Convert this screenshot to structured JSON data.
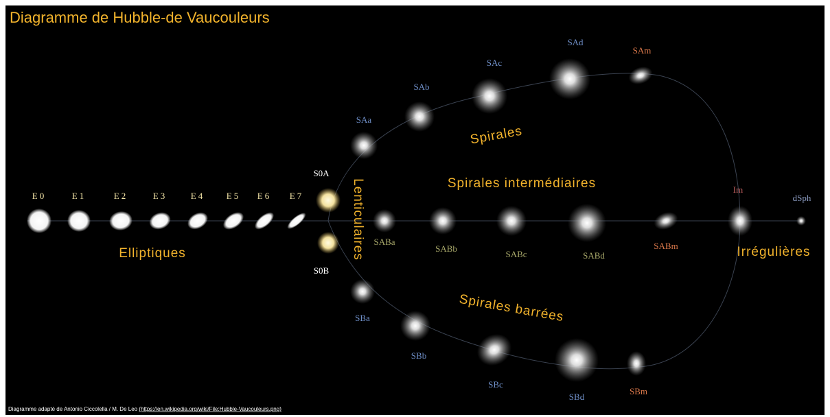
{
  "title": "Diagramme de Hubble-de Vaucouleurs",
  "groups": {
    "elliptical": "Elliptiques",
    "lenticular": "Lenticulaires",
    "spiral": "Spirales",
    "intermediate": "Spirales intermédiaires",
    "barred": "Spirales barrées",
    "irregular": "Irrégulières"
  },
  "galaxies": [
    {
      "label": "E0"
    },
    {
      "label": "E1"
    },
    {
      "label": "E2"
    },
    {
      "label": "E3"
    },
    {
      "label": "E4"
    },
    {
      "label": "E5"
    },
    {
      "label": "E6"
    },
    {
      "label": "E7"
    },
    {
      "label": "S0A"
    },
    {
      "label": "S0B"
    },
    {
      "label": "SAa"
    },
    {
      "label": "SAb"
    },
    {
      "label": "SAc"
    },
    {
      "label": "SAd"
    },
    {
      "label": "SAm"
    },
    {
      "label": "SABa"
    },
    {
      "label": "SABb"
    },
    {
      "label": "SABc"
    },
    {
      "label": "SABd"
    },
    {
      "label": "SABm"
    },
    {
      "label": "SBa"
    },
    {
      "label": "SBb"
    },
    {
      "label": "SBc"
    },
    {
      "label": "SBd"
    },
    {
      "label": "SBm"
    },
    {
      "label": "Im"
    },
    {
      "label": "dSph"
    }
  ],
  "credit": {
    "text": "Diagramme adapté de Antonio Ciccolella / M. De Leo",
    "link": "(https://en.wikipedia.org/wiki/File:Hubble-Vaucouleurs.png)"
  }
}
